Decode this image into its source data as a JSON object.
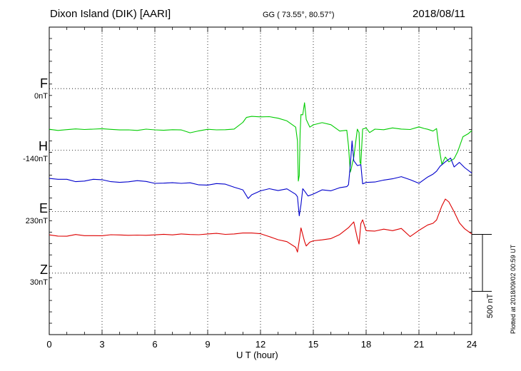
{
  "header": {
    "station": "Dixon Island (DIK)  [AARI]",
    "coords": "GG ( 73.55°,  80.57°)",
    "date": "2018/08/11"
  },
  "channels": [
    {
      "name": "F",
      "baseline": "0nT",
      "color": "#ffa500"
    },
    {
      "name": "H",
      "baseline": "-140nT",
      "color": "#00cc00"
    },
    {
      "name": "E",
      "baseline": "230nT",
      "color": "#0000cc"
    },
    {
      "name": "Z",
      "baseline": "30nT",
      "color": "#dd0000"
    }
  ],
  "footer": {
    "plotted": "Plotted at 2018/09/02 00:59 UT",
    "scale_label": "500 nT"
  },
  "chart_data": {
    "type": "line",
    "title": "Dixon Island (DIK)  [AARI]",
    "xlabel": "U T (hour)",
    "ylabel": "",
    "xlim": [
      0,
      24
    ],
    "x_ticks": [
      "0",
      "3",
      "6",
      "9",
      "12",
      "15",
      "18",
      "21",
      "24"
    ],
    "ylim": [
      -1350,
      1350
    ],
    "y_unit": "nT",
    "grid": true,
    "series": [
      {
        "name": "H",
        "color": "#00cc00",
        "offset": 450,
        "baseline": "-140nT",
        "x": [
          0,
          0.5,
          1,
          1.5,
          2,
          2.5,
          3,
          3.5,
          4,
          4.5,
          5,
          5.5,
          6,
          6.5,
          7,
          7.5,
          8,
          8.5,
          9,
          9.5,
          10,
          10.5,
          11,
          11.2,
          11.5,
          12,
          12.5,
          13,
          13.5,
          14,
          14.1,
          14.15,
          14.2,
          14.25,
          14.3,
          14.4,
          14.5,
          14.6,
          14.8,
          15,
          15.5,
          16,
          16.5,
          16.9,
          17,
          17.1,
          17.15,
          17.2,
          17.3,
          17.5,
          17.6,
          17.65,
          17.7,
          17.8,
          18,
          18.2,
          18.5,
          19,
          19.5,
          20,
          20.5,
          21,
          21.3,
          21.5,
          21.8,
          22,
          22.1,
          22.3,
          22.5,
          22.7,
          23,
          23.2,
          23.5,
          23.8,
          24
        ],
        "values": [
          3,
          -7,
          0,
          6,
          1,
          4,
          8,
          2,
          -3,
          -2,
          -7,
          4,
          -2,
          -6,
          -1,
          -3,
          -28,
          -11,
          3,
          -2,
          -1,
          5,
          64,
          107,
          116,
          112,
          114,
          100,
          77,
          22,
          -100,
          -452,
          -403,
          -29,
          132,
          130,
          236,
          89,
          22,
          42,
          61,
          43,
          -13,
          -6,
          -143,
          -373,
          -348,
          -309,
          -243,
          4,
          -26,
          -284,
          -303,
          5,
          15,
          -26,
          4,
          -1,
          15,
          5,
          1,
          24,
          10,
          3,
          -13,
          9,
          -114,
          -304,
          -241,
          -283,
          -255,
          -193,
          -62,
          -36,
          -9
        ]
      },
      {
        "name": "E",
        "color": "#0000cc",
        "offset": -10,
        "baseline": "230nT",
        "x": [
          0,
          0.5,
          1,
          1.5,
          2,
          2.5,
          3,
          3.5,
          4,
          4.5,
          5,
          5.5,
          6,
          6.5,
          7,
          7.5,
          8,
          8.5,
          9,
          9.5,
          10,
          10.5,
          11,
          11.3,
          11.5,
          12,
          12.5,
          13,
          13.5,
          14,
          14.1,
          14.2,
          14.3,
          14.4,
          14.5,
          14.7,
          15,
          15.5,
          16,
          16.5,
          16.9,
          17,
          17.1,
          17.2,
          17.3,
          17.5,
          17.7,
          17.8,
          18,
          18.5,
          19,
          19.5,
          20,
          20.5,
          21,
          21.5,
          21.8,
          22,
          22.2,
          22.5,
          22.8,
          23,
          23.3,
          23.6,
          24
        ],
        "values": [
          31,
          24,
          24,
          3,
          8,
          24,
          20,
          3,
          -3,
          2,
          12,
          5,
          -12,
          -10,
          -6,
          -12,
          -7,
          -25,
          -27,
          -14,
          -19,
          -46,
          -69,
          -145,
          -112,
          -78,
          -59,
          -75,
          -60,
          -108,
          -130,
          -297,
          -199,
          -59,
          -79,
          -123,
          -106,
          -69,
          -77,
          -50,
          -41,
          -24,
          145,
          360,
          187,
          144,
          152,
          -16,
          -4,
          0,
          17,
          28,
          47,
          20,
          -11,
          44,
          69,
          95,
          138,
          177,
          210,
          132,
          172,
          126,
          78
        ]
      },
      {
        "name": "Z",
        "color": "#dd0000",
        "offset": -470,
        "baseline": "30nT",
        "x": [
          0,
          0.5,
          1,
          1.5,
          2,
          2.5,
          3,
          3.5,
          4,
          4.5,
          5,
          5.5,
          6,
          6.5,
          7,
          7.5,
          8,
          8.5,
          9,
          9.5,
          10,
          10.5,
          11,
          11.5,
          12,
          12.5,
          13,
          13.5,
          14,
          14.1,
          14.2,
          14.3,
          14.5,
          14.6,
          14.8,
          15,
          15.5,
          16,
          16.5,
          17,
          17.3,
          17.5,
          17.6,
          17.7,
          17.8,
          18,
          18.5,
          19,
          19.5,
          20,
          20.5,
          21,
          21.5,
          21.8,
          22,
          22.3,
          22.5,
          22.7,
          23,
          23.3,
          23.6,
          24
        ],
        "values": [
          -4,
          -15,
          -16,
          -1,
          -11,
          -11,
          -12,
          -3,
          -5,
          -8,
          -6,
          -8,
          -4,
          1,
          -4,
          4,
          -1,
          -3,
          4,
          9,
          0,
          4,
          12,
          12,
          6,
          -19,
          -47,
          -64,
          -113,
          -155,
          -55,
          57,
          -62,
          -102,
          -68,
          -56,
          -48,
          -37,
          -1,
          59,
          110,
          -34,
          -85,
          95,
          128,
          33,
          29,
          46,
          33,
          52,
          -19,
          35,
          83,
          97,
          127,
          250,
          310,
          285,
          198,
          101,
          49,
          4
        ]
      }
    ]
  }
}
